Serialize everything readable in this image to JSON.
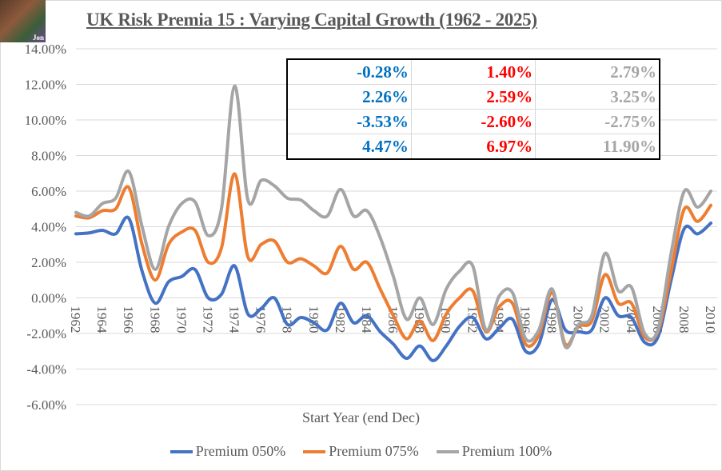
{
  "title": "UK Risk Premia 15 : Varying Capital Growth (1962 - 2025)",
  "logo_text": "Jon",
  "stats_table": [
    [
      "-0.28%",
      "1.40%",
      "2.79%"
    ],
    [
      "2.26%",
      "2.59%",
      "3.25%"
    ],
    [
      "-3.53%",
      "-2.60%",
      "-2.75%"
    ],
    [
      "4.47%",
      "6.97%",
      "11.90%"
    ]
  ],
  "chart_data": {
    "type": "line",
    "title": "UK Risk Premia 15 : Varying Capital Growth (1962 - 2025)",
    "xlabel": "Start Year (end Dec)",
    "ylabel": "",
    "ylim": [
      -6,
      14
    ],
    "yticks": [
      "14.00%",
      "12.00%",
      "10.00%",
      "8.00%",
      "6.00%",
      "4.00%",
      "2.00%",
      "0.00%",
      "-2.00%",
      "-4.00%",
      "-6.00%"
    ],
    "grid": true,
    "legend": "bottom",
    "x": [
      1962,
      1963,
      1964,
      1965,
      1966,
      1967,
      1968,
      1969,
      1970,
      1971,
      1972,
      1973,
      1974,
      1975,
      1976,
      1977,
      1978,
      1979,
      1980,
      1981,
      1982,
      1983,
      1984,
      1985,
      1986,
      1987,
      1988,
      1989,
      1990,
      1991,
      1992,
      1993,
      1994,
      1995,
      1996,
      1997,
      1998,
      1999,
      2000,
      2001,
      2002,
      2003,
      2004,
      2005,
      2006,
      2007,
      2008,
      2009,
      2010
    ],
    "xtick_labels": [
      "1962",
      "1964",
      "1966",
      "1968",
      "1970",
      "1972",
      "1974",
      "1976",
      "1978",
      "1980",
      "1982",
      "1984",
      "1986",
      "1988",
      "1990",
      "1992",
      "1994",
      "1996",
      "1998",
      "2000",
      "2002",
      "2004",
      "2006",
      "2008",
      "2010"
    ],
    "series": [
      {
        "name": "Premium 050%",
        "color": "#4472c4",
        "values": [
          3.6,
          3.65,
          3.8,
          3.6,
          4.47,
          1.5,
          -0.3,
          0.9,
          1.2,
          1.6,
          0.0,
          0.2,
          1.8,
          -0.9,
          -0.6,
          0.0,
          -1.5,
          -1.1,
          -1.4,
          -1.8,
          -0.3,
          -1.4,
          -1.0,
          -1.9,
          -2.6,
          -3.4,
          -2.7,
          -3.53,
          -2.7,
          -1.6,
          -1.1,
          -2.3,
          -1.7,
          -1.2,
          -3.0,
          -2.6,
          -0.1,
          -1.8,
          -1.9,
          -1.8,
          0.0,
          -1.0,
          -1.1,
          -2.5,
          -2.2,
          1.0,
          3.9,
          3.6,
          4.2
        ]
      },
      {
        "name": "Premium 075%",
        "color": "#ed7d31",
        "values": [
          4.6,
          4.5,
          4.9,
          5.0,
          6.2,
          3.0,
          1.0,
          3.0,
          3.7,
          3.8,
          2.0,
          2.8,
          6.97,
          2.3,
          3.0,
          3.2,
          2.0,
          2.2,
          1.8,
          1.4,
          2.9,
          1.6,
          2.0,
          0.5,
          -1.0,
          -2.3,
          -1.3,
          -2.4,
          -0.9,
          0.0,
          0.4,
          -1.9,
          -0.5,
          -0.3,
          -2.6,
          -2.1,
          0.3,
          -2.6,
          -1.6,
          -1.3,
          1.3,
          -0.3,
          -0.3,
          -2.2,
          -1.9,
          1.5,
          5.0,
          4.3,
          5.2
        ]
      },
      {
        "name": "Premium 100%",
        "color": "#a5a5a5",
        "values": [
          4.8,
          4.6,
          5.3,
          5.6,
          7.1,
          4.0,
          1.6,
          4.0,
          5.3,
          5.4,
          3.5,
          5.0,
          11.9,
          5.5,
          6.6,
          6.3,
          5.6,
          5.5,
          4.9,
          4.6,
          6.1,
          4.6,
          4.9,
          3.4,
          1.2,
          -1.2,
          0.0,
          -1.5,
          0.5,
          1.5,
          1.8,
          -1.8,
          0.1,
          0.3,
          -2.3,
          -1.8,
          0.5,
          -2.75,
          -1.5,
          -1.0,
          2.5,
          0.4,
          0.6,
          -2.0,
          -1.8,
          2.5,
          6.0,
          5.1,
          6.0
        ]
      }
    ]
  }
}
